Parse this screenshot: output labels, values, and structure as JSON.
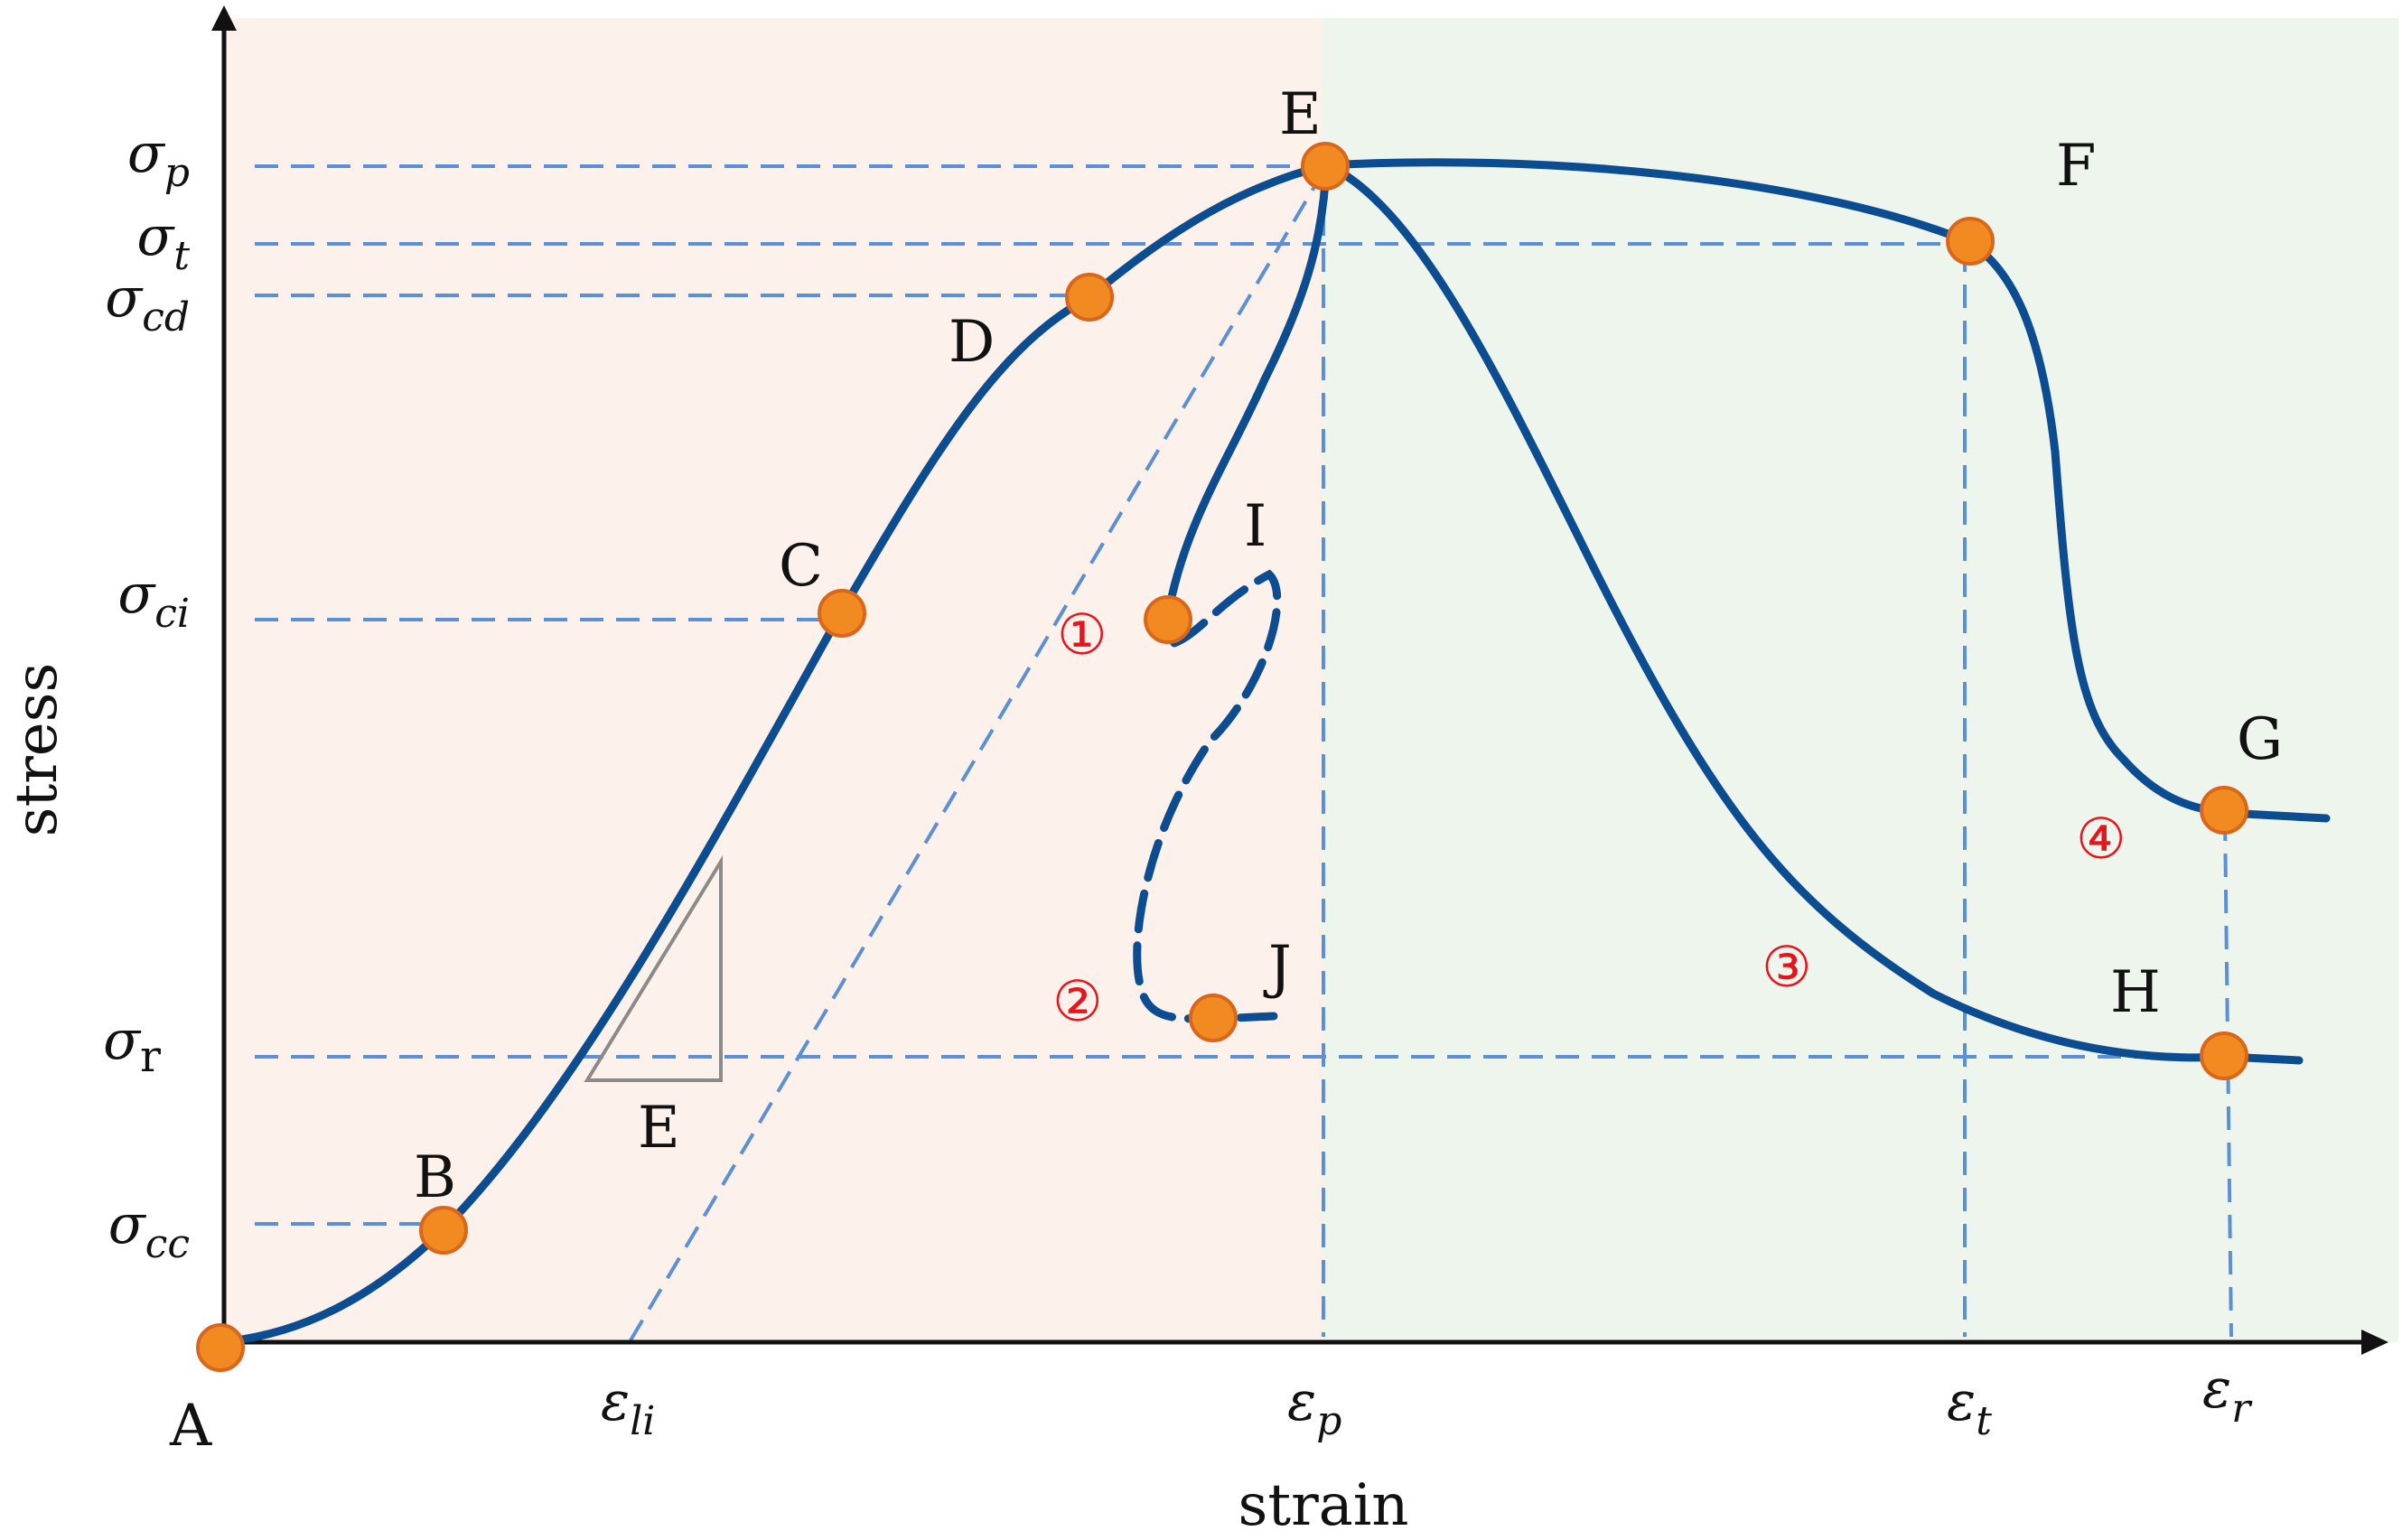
{
  "axes": {
    "x_label": "strain",
    "y_label": "stress"
  },
  "y_ticks": [
    {
      "id": "sp",
      "base": "σ",
      "sub": "p"
    },
    {
      "id": "st",
      "base": "σ",
      "sub": "t"
    },
    {
      "id": "scd",
      "base": "σ",
      "sub": "cd"
    },
    {
      "id": "sci",
      "base": "σ",
      "sub": "ci"
    },
    {
      "id": "sr",
      "base": "σ",
      "sub": "r"
    },
    {
      "id": "scc",
      "base": "σ",
      "sub": "cc"
    }
  ],
  "x_ticks": [
    {
      "id": "eli",
      "base": "ε",
      "sub": "li"
    },
    {
      "id": "ep",
      "base": "ε",
      "sub": "p"
    },
    {
      "id": "et",
      "base": "ε",
      "sub": "t"
    },
    {
      "id": "er",
      "base": "ε",
      "sub": "r"
    }
  ],
  "points": [
    "A",
    "B",
    "C",
    "D",
    "E",
    "F",
    "G",
    "H",
    "I",
    "J"
  ],
  "modulus_label": "E",
  "circled": [
    "①",
    "②",
    "③",
    "④"
  ],
  "colors": {
    "pre_peak_region": "#fdf1ec",
    "post_peak_region": "#eef5ed",
    "curve": "#0c4d92",
    "guide": "#5b8fd6",
    "point": "#f28a22",
    "circled_number": "#e8141b"
  }
}
